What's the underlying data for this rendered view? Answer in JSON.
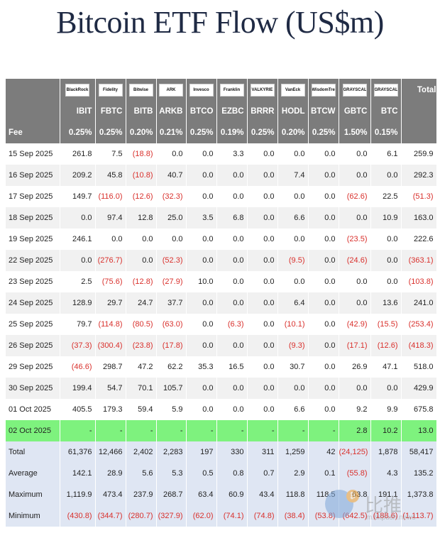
{
  "title": "Bitcoin ETF Flow (US$m)",
  "header": {
    "logos": [
      "BlackRock",
      "Fidelity",
      "Bitwise",
      "ARK",
      "Invesco",
      "Franklin",
      "VALKYRIE",
      "VanEck",
      "WisdomTree",
      "GRAYSCALE",
      "GRAYSCALE"
    ],
    "total_label": "Total",
    "tickers": [
      "IBIT",
      "FBTC",
      "BITB",
      "ARKB",
      "BTCO",
      "EZBC",
      "BRRR",
      "HODL",
      "BTCW",
      "GBTC",
      "BTC"
    ],
    "fee_label": "Fee",
    "fees": [
      "0.25%",
      "0.25%",
      "0.20%",
      "0.21%",
      "0.25%",
      "0.19%",
      "0.25%",
      "0.20%",
      "0.25%",
      "1.50%",
      "0.15%"
    ]
  },
  "rows": [
    {
      "date": "15 Sep 2025",
      "values": [
        "261.8",
        "7.5",
        "(18.8)",
        "0.0",
        "0.0",
        "3.3",
        "0.0",
        "0.0",
        "0.0",
        "0.0",
        "6.1"
      ],
      "total": "259.9"
    },
    {
      "date": "16 Sep 2025",
      "values": [
        "209.2",
        "45.8",
        "(10.8)",
        "40.7",
        "0.0",
        "0.0",
        "0.0",
        "7.4",
        "0.0",
        "0.0",
        "0.0"
      ],
      "total": "292.3"
    },
    {
      "date": "17 Sep 2025",
      "values": [
        "149.7",
        "(116.0)",
        "(12.6)",
        "(32.3)",
        "0.0",
        "0.0",
        "0.0",
        "0.0",
        "0.0",
        "(62.6)",
        "22.5"
      ],
      "total": "(51.3)"
    },
    {
      "date": "18 Sep 2025",
      "values": [
        "0.0",
        "97.4",
        "12.8",
        "25.0",
        "3.5",
        "6.8",
        "0.0",
        "6.6",
        "0.0",
        "0.0",
        "10.9"
      ],
      "total": "163.0"
    },
    {
      "date": "19 Sep 2025",
      "values": [
        "246.1",
        "0.0",
        "0.0",
        "0.0",
        "0.0",
        "0.0",
        "0.0",
        "0.0",
        "0.0",
        "(23.5)",
        "0.0"
      ],
      "total": "222.6"
    },
    {
      "date": "22 Sep 2025",
      "values": [
        "0.0",
        "(276.7)",
        "0.0",
        "(52.3)",
        "0.0",
        "0.0",
        "0.0",
        "(9.5)",
        "0.0",
        "(24.6)",
        "0.0"
      ],
      "total": "(363.1)"
    },
    {
      "date": "23 Sep 2025",
      "values": [
        "2.5",
        "(75.6)",
        "(12.8)",
        "(27.9)",
        "10.0",
        "0.0",
        "0.0",
        "0.0",
        "0.0",
        "0.0",
        "0.0"
      ],
      "total": "(103.8)"
    },
    {
      "date": "24 Sep 2025",
      "values": [
        "128.9",
        "29.7",
        "24.7",
        "37.7",
        "0.0",
        "0.0",
        "0.0",
        "6.4",
        "0.0",
        "0.0",
        "13.6"
      ],
      "total": "241.0"
    },
    {
      "date": "25 Sep 2025",
      "values": [
        "79.7",
        "(114.8)",
        "(80.5)",
        "(63.0)",
        "0.0",
        "(6.3)",
        "0.0",
        "(10.1)",
        "0.0",
        "(42.9)",
        "(15.5)"
      ],
      "total": "(253.4)"
    },
    {
      "date": "26 Sep 2025",
      "values": [
        "(37.3)",
        "(300.4)",
        "(23.8)",
        "(17.8)",
        "0.0",
        "0.0",
        "0.0",
        "(9.3)",
        "0.0",
        "(17.1)",
        "(12.6)"
      ],
      "total": "(418.3)"
    },
    {
      "date": "29 Sep 2025",
      "values": [
        "(46.6)",
        "298.7",
        "47.2",
        "62.2",
        "35.3",
        "16.5",
        "0.0",
        "30.7",
        "0.0",
        "26.9",
        "47.1"
      ],
      "total": "518.0"
    },
    {
      "date": "30 Sep 2025",
      "values": [
        "199.4",
        "54.7",
        "70.1",
        "105.7",
        "0.0",
        "0.0",
        "0.0",
        "0.0",
        "0.0",
        "0.0",
        "0.0"
      ],
      "total": "429.9"
    },
    {
      "date": "01 Oct 2025",
      "values": [
        "405.5",
        "179.3",
        "59.4",
        "5.9",
        "0.0",
        "0.0",
        "0.0",
        "6.6",
        "0.0",
        "9.2",
        "9.9"
      ],
      "total": "675.8"
    },
    {
      "date": "02 Oct 2025",
      "values": [
        "-",
        "-",
        "-",
        "-",
        "-",
        "-",
        "-",
        "-",
        "-",
        "2.8",
        "10.2"
      ],
      "total": "13.0",
      "highlight": true
    }
  ],
  "summary": [
    {
      "label": "Total",
      "values": [
        "61,376",
        "12,466",
        "2,402",
        "2,283",
        "197",
        "330",
        "311",
        "1,259",
        "42",
        "(24,125)",
        "1,878"
      ],
      "total": "58,417"
    },
    {
      "label": "Average",
      "values": [
        "142.1",
        "28.9",
        "5.6",
        "5.3",
        "0.5",
        "0.8",
        "0.7",
        "2.9",
        "0.1",
        "(55.8)",
        "4.3"
      ],
      "total": "135.2"
    },
    {
      "label": "Maximum",
      "values": [
        "1,119.9",
        "473.4",
        "237.9",
        "268.7",
        "63.4",
        "60.9",
        "43.4",
        "118.8",
        "118.5",
        "63.8",
        "191.1"
      ],
      "total": "1,373.8"
    },
    {
      "label": "Minimum",
      "values": [
        "(430.8)",
        "(344.7)",
        "(280.7)",
        "(327.9)",
        "(62.0)",
        "(74.1)",
        "(74.8)",
        "(38.4)",
        "(53.8)",
        "(642.5)",
        "(188.6)"
      ],
      "total": "(1,113.7)"
    }
  ],
  "watermark": {
    "text_cn": "比推",
    "url": "m.bitpush.news"
  },
  "colors": {
    "header_bg": "#7c7c7c",
    "negative": "#d9302c",
    "highlight": "#7ef27e",
    "summary_bg": "#dfe6f3"
  }
}
